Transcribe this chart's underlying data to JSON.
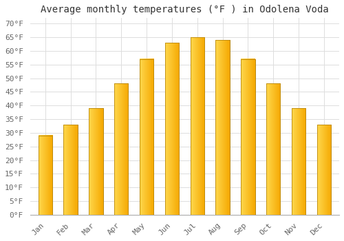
{
  "title": "Average monthly temperatures (°F ) in Odolena Voda",
  "months": [
    "Jan",
    "Feb",
    "Mar",
    "Apr",
    "May",
    "Jun",
    "Jul",
    "Aug",
    "Sep",
    "Oct",
    "Nov",
    "Dec"
  ],
  "values": [
    29,
    33,
    39,
    48,
    57,
    63,
    65,
    64,
    57,
    48,
    39,
    33
  ],
  "bar_color_left": "#FFD84D",
  "bar_color_right": "#F5A800",
  "bar_edge_color": "#B8860B",
  "background_color": "#FFFFFF",
  "grid_color": "#DDDDDD",
  "yticks": [
    0,
    5,
    10,
    15,
    20,
    25,
    30,
    35,
    40,
    45,
    50,
    55,
    60,
    65,
    70
  ],
  "ylim": [
    0,
    72
  ],
  "title_fontsize": 10,
  "tick_fontsize": 8,
  "font_family": "monospace",
  "bar_width": 0.55
}
